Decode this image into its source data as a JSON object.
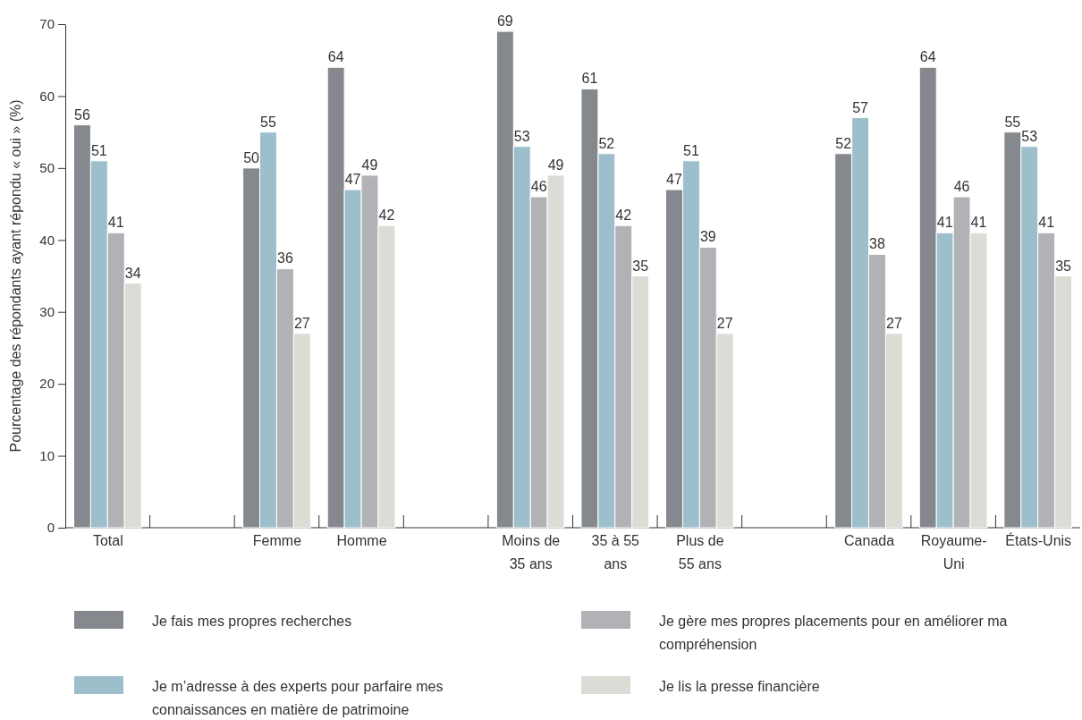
{
  "chart_data": {
    "type": "bar",
    "ylabel": "Pourcentage des répondants ayant répondu « oui » (%)",
    "categories": [
      "Total",
      null,
      "Femme",
      "Homme",
      null,
      "Moins de 35 ans",
      "35 à 55 ans",
      "Plus de 55 ans",
      null,
      "Canada",
      "Royaume-Uni",
      "États-Unis"
    ],
    "series": [
      {
        "name": "Je fais mes propres recherches",
        "color": "#85888d",
        "values": [
          56,
          null,
          50,
          64,
          null,
          69,
          61,
          47,
          null,
          52,
          64,
          55
        ]
      },
      {
        "name": "Je m’adresse à des experts pour parfaire mes connaissances en matière de patrimoine",
        "color": "#9dbfcc",
        "values": [
          51,
          null,
          55,
          47,
          null,
          53,
          52,
          51,
          null,
          57,
          41,
          53
        ]
      },
      {
        "name": "Je gère mes propres placements pour en améliorer ma compréhension",
        "color": "#b1b2b6",
        "values": [
          41,
          null,
          36,
          49,
          null,
          46,
          42,
          39,
          null,
          38,
          46,
          41
        ]
      },
      {
        "name": "Je lis la presse financière",
        "color": "#dddbd5",
        "values": [
          34,
          null,
          27,
          42,
          null,
          49,
          35,
          27,
          null,
          27,
          41,
          35
        ]
      }
    ],
    "ylim": [
      0,
      70
    ],
    "yticks": [
      0,
      10,
      20,
      30,
      40,
      50,
      60,
      70
    ],
    "grid": false,
    "data_labels": true,
    "legend": "bottom"
  }
}
